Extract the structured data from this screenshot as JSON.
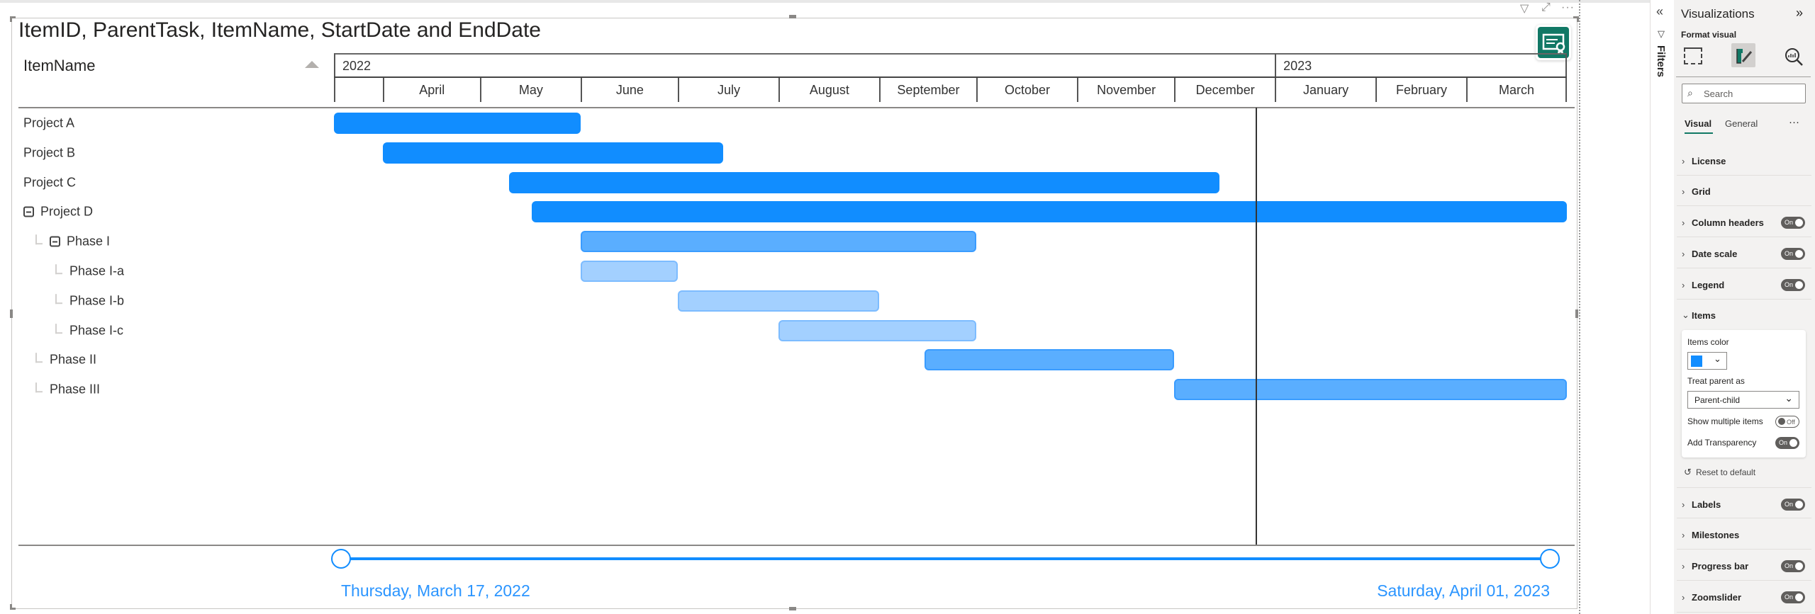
{
  "visual": {
    "title": "ItemID, ParentTask, ItemName, StartDate and EndDate",
    "header_icons": [
      "filter-icon",
      "focus-mode-icon",
      "more-options-icon"
    ],
    "column_header": "ItemName",
    "badge_icon": "certificate-icon",
    "years": [
      "2022",
      "2023"
    ],
    "months": [
      "April",
      "May",
      "June",
      "July",
      "August",
      "September",
      "October",
      "November",
      "December",
      "January",
      "February",
      "March"
    ]
  },
  "chart_data": {
    "type": "gantt",
    "range": [
      "2022-03-17",
      "2023-04-01"
    ],
    "today_marker": "2022-12-26",
    "colors": {
      "level0": "#118dff",
      "level1": "#5aaeff",
      "level2": "#a3d0ff"
    },
    "items": [
      {
        "name": "Project A",
        "level": 0,
        "start": "2022-03-17",
        "end": "2022-06-01"
      },
      {
        "name": "Project B",
        "level": 0,
        "start": "2022-04-01",
        "end": "2022-07-15"
      },
      {
        "name": "Project C",
        "level": 0,
        "start": "2022-05-10",
        "end": "2022-12-15"
      },
      {
        "name": "Project D",
        "level": 0,
        "collapsible": true,
        "start": "2022-05-17",
        "end": "2023-04-01"
      },
      {
        "name": "Phase I",
        "level": 1,
        "collapsible": true,
        "start": "2022-06-01",
        "end": "2022-10-01"
      },
      {
        "name": "Phase I-a",
        "level": 2,
        "start": "2022-06-01",
        "end": "2022-07-01"
      },
      {
        "name": "Phase I-b",
        "level": 2,
        "start": "2022-07-01",
        "end": "2022-09-01"
      },
      {
        "name": "Phase I-c",
        "level": 2,
        "start": "2022-08-01",
        "end": "2022-10-01"
      },
      {
        "name": "Phase II",
        "level": 1,
        "start": "2022-09-15",
        "end": "2022-12-01"
      },
      {
        "name": "Phase III",
        "level": 1,
        "start": "2022-12-01",
        "end": "2023-04-01"
      }
    ]
  },
  "zoomslider": {
    "start_label": "Thursday, March 17, 2022",
    "end_label": "Saturday, April 01, 2023"
  },
  "filters": {
    "label": "Filters"
  },
  "panel": {
    "title": "Visualizations",
    "subtitle": "Format visual",
    "search_placeholder": "Search",
    "tabs": [
      "Visual",
      "General"
    ],
    "sections_top": [
      {
        "label": "License"
      },
      {
        "label": "Grid"
      },
      {
        "label": "Column headers",
        "toggle": "On"
      },
      {
        "label": "Date scale",
        "toggle": "On"
      },
      {
        "label": "Legend",
        "toggle": "On"
      }
    ],
    "items_section": {
      "label": "Items",
      "items_color_label": "Items color",
      "items_color": "#118dff",
      "treat_parent_label": "Treat parent as",
      "treat_parent_value": "Parent-child",
      "show_multiple_label": "Show multiple items",
      "show_multiple_toggle": "Off",
      "transparency_label": "Add Transparency",
      "transparency_toggle": "On",
      "reset_label": "Reset to default"
    },
    "sections_bottom": [
      {
        "label": "Labels",
        "toggle": "On"
      },
      {
        "label": "Milestones"
      },
      {
        "label": "Progress bar",
        "toggle": "On"
      },
      {
        "label": "Zoomslider",
        "toggle": "On"
      }
    ]
  }
}
